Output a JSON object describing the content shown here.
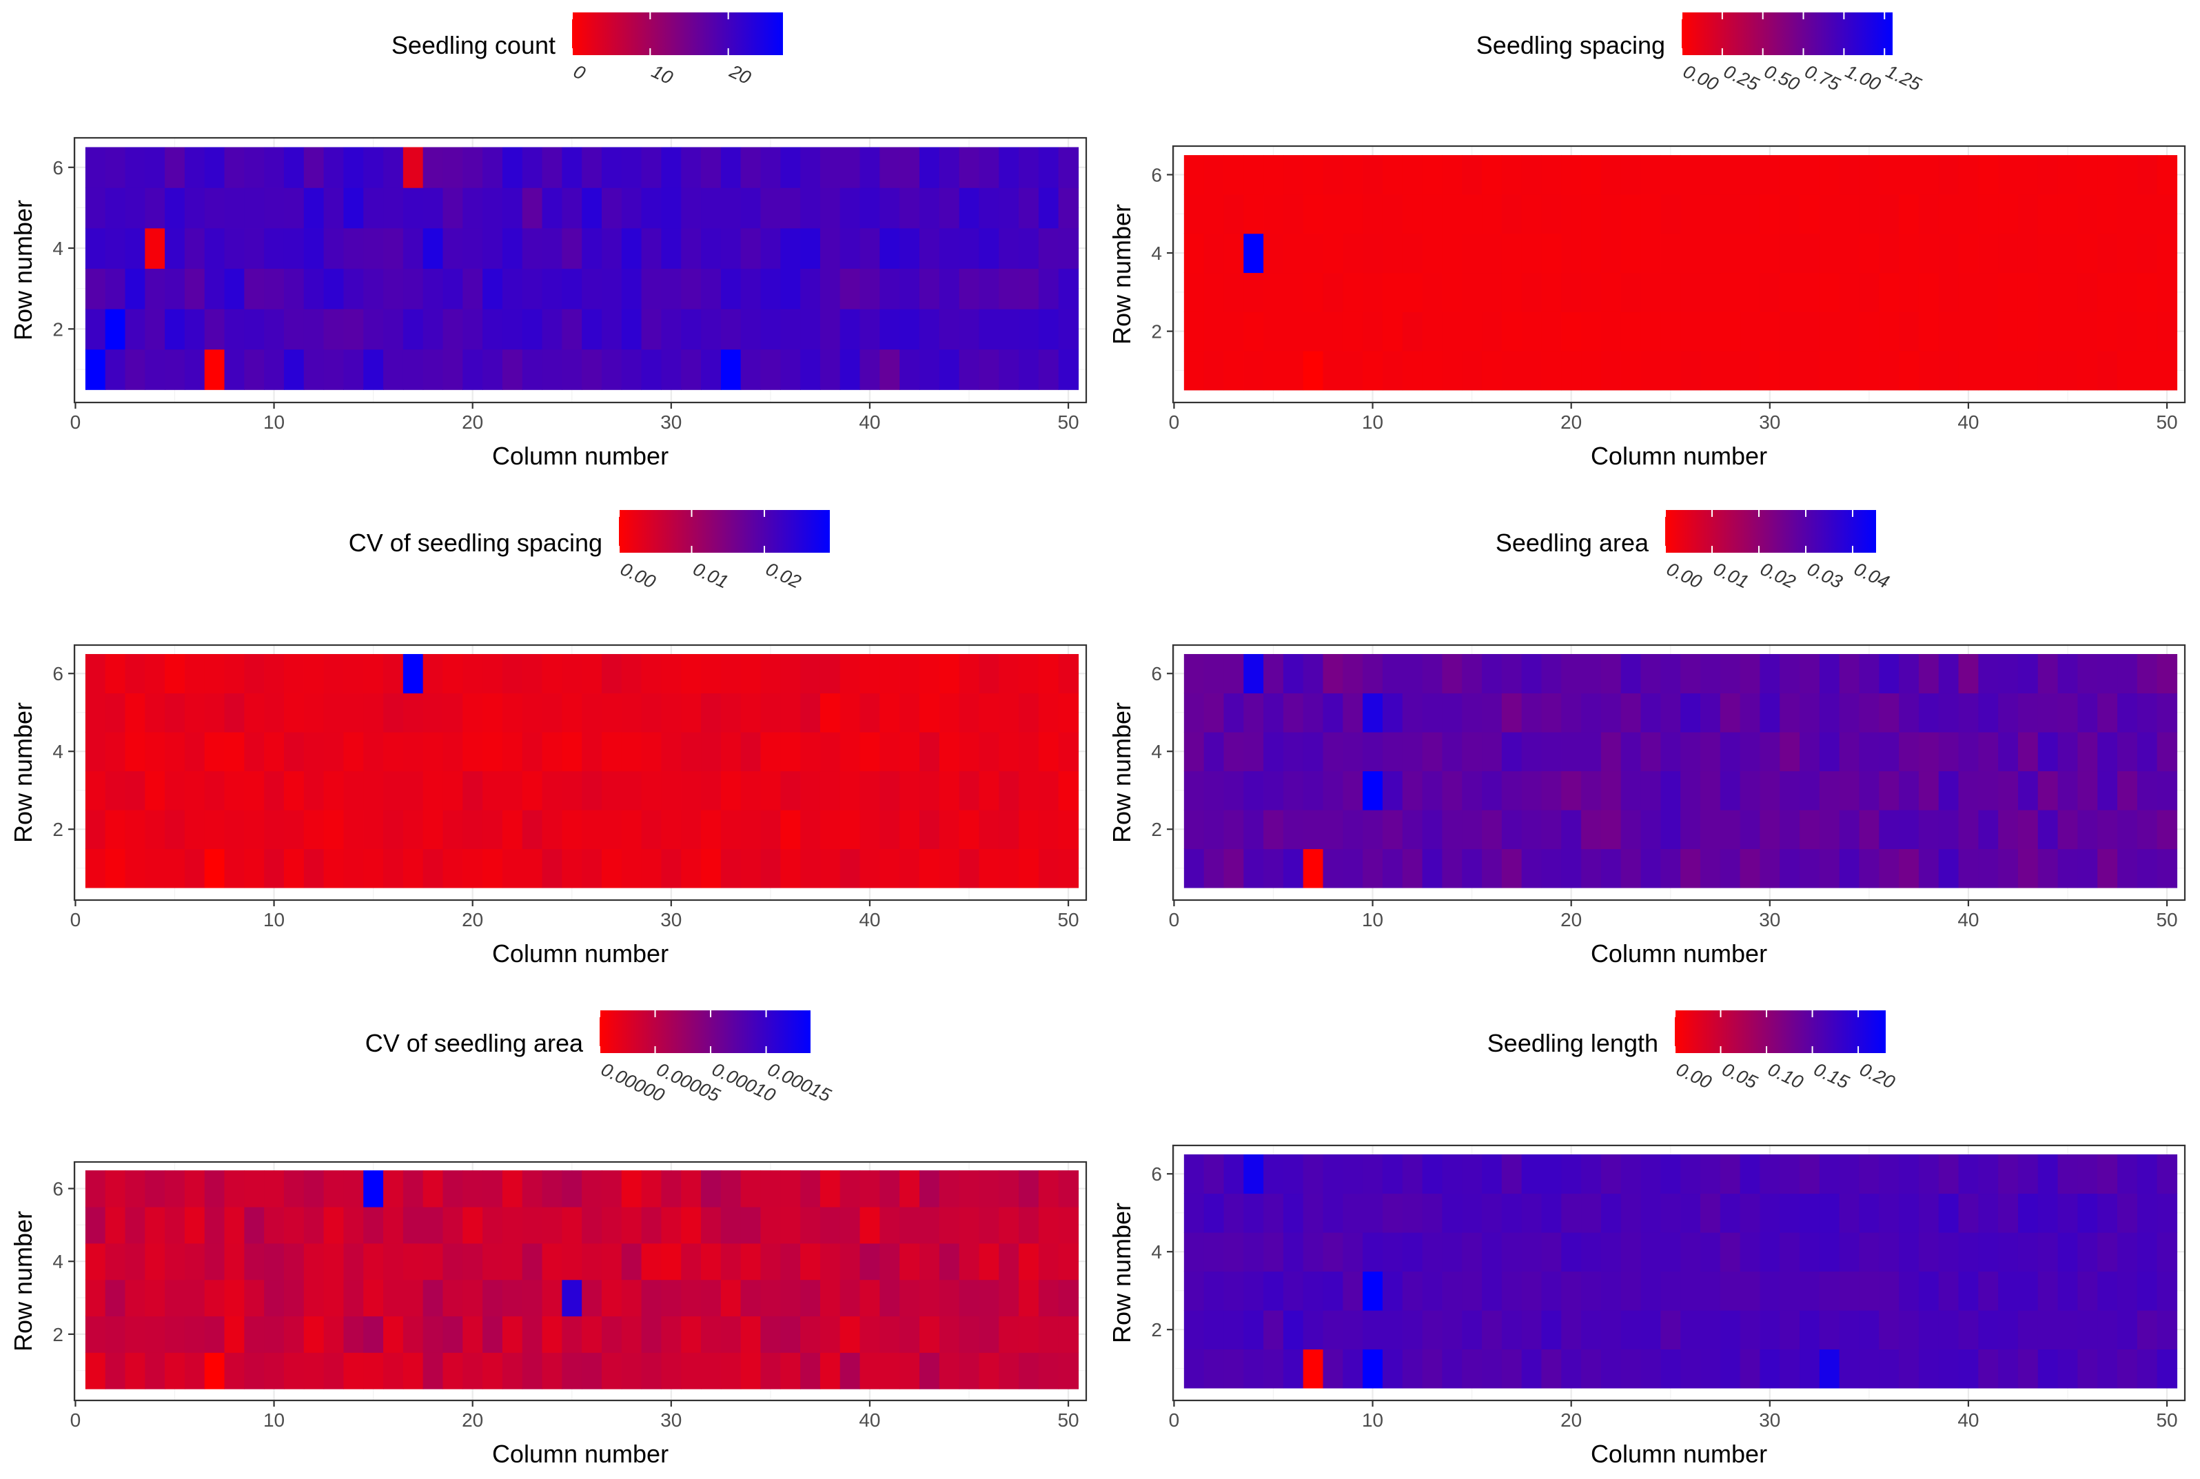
{
  "chart_data": [
    {
      "type": "heatmap",
      "title": "",
      "xlabel": "Column number",
      "ylabel": "Row number",
      "xlim": [
        0.5,
        50.5
      ],
      "ylim": [
        0.5,
        6.5
      ],
      "x_ticks": [
        0,
        10,
        20,
        30,
        40,
        50
      ],
      "y_ticks": [
        2,
        4,
        6
      ],
      "grid": true,
      "legend": {
        "title": "Seedling count",
        "position": "top",
        "low_color": "#ff0000",
        "high_color": "#0000ff",
        "range": [
          0,
          27
        ],
        "tick_labels": [
          "0",
          "10",
          "20"
        ],
        "tick_values": [
          0,
          10,
          20
        ]
      },
      "n_rows": 6,
      "n_cols": 50,
      "base_value": 20,
      "variation": 4,
      "seed": 11,
      "highlights": [
        {
          "row": 1,
          "col": 1,
          "value": 27
        },
        {
          "row": 1,
          "col": 7,
          "value": 0
        },
        {
          "row": 1,
          "col": 33,
          "value": 27
        },
        {
          "row": 2,
          "col": 2,
          "value": 27
        },
        {
          "row": 4,
          "col": 4,
          "value": 1
        },
        {
          "row": 6,
          "col": 17,
          "value": 3
        }
      ]
    },
    {
      "type": "heatmap",
      "title": "",
      "xlabel": "Column number",
      "ylabel": "Row number",
      "xlim": [
        0.5,
        50.5
      ],
      "ylim": [
        0.5,
        6.5
      ],
      "x_ticks": [
        0,
        10,
        20,
        30,
        40,
        50
      ],
      "y_ticks": [
        2,
        4,
        6
      ],
      "grid": true,
      "legend": {
        "title": "Seedling spacing",
        "position": "top",
        "low_color": "#ff0000",
        "high_color": "#0000ff",
        "range": [
          0,
          1.3
        ],
        "tick_labels": [
          "0.00",
          "0.25",
          "0.50",
          "0.75",
          "1.00",
          "1.25"
        ],
        "tick_values": [
          0,
          0.25,
          0.5,
          0.75,
          1.0,
          1.25
        ]
      },
      "n_rows": 6,
      "n_cols": 50,
      "base_value": 0.05,
      "variation": 0.015,
      "seed": 23,
      "highlights": [
        {
          "row": 4,
          "col": 4,
          "value": 1.3
        },
        {
          "row": 1,
          "col": 7,
          "value": 0.0
        }
      ]
    },
    {
      "type": "heatmap",
      "title": "",
      "xlabel": "Column number",
      "ylabel": "Row number",
      "xlim": [
        0.5,
        50.5
      ],
      "ylim": [
        0.5,
        6.5
      ],
      "x_ticks": [
        0,
        10,
        20,
        30,
        40,
        50
      ],
      "y_ticks": [
        2,
        4,
        6
      ],
      "grid": true,
      "legend": {
        "title": "CV of seedling spacing",
        "position": "top",
        "low_color": "#ff0000",
        "high_color": "#0000ff",
        "range": [
          0,
          0.029
        ],
        "tick_labels": [
          "0.00",
          "0.01",
          "0.02"
        ],
        "tick_values": [
          0,
          0.01,
          0.02
        ]
      },
      "n_rows": 6,
      "n_cols": 50,
      "base_value": 0.0025,
      "variation": 0.002,
      "seed": 37,
      "highlights": [
        {
          "row": 6,
          "col": 17,
          "value": 0.029
        },
        {
          "row": 1,
          "col": 7,
          "value": 0.0
        }
      ]
    },
    {
      "type": "heatmap",
      "title": "",
      "xlabel": "Column number",
      "ylabel": "Row number",
      "xlim": [
        0.5,
        50.5
      ],
      "ylim": [
        0.5,
        6.5
      ],
      "x_ticks": [
        0,
        10,
        20,
        30,
        40,
        50
      ],
      "y_ticks": [
        2,
        4,
        6
      ],
      "grid": true,
      "legend": {
        "title": "Seedling area",
        "position": "top",
        "low_color": "#ff0000",
        "high_color": "#0000ff",
        "range": [
          0,
          0.045
        ],
        "tick_labels": [
          "0.00",
          "0.01",
          "0.02",
          "0.03",
          "0.04"
        ],
        "tick_values": [
          0,
          0.01,
          0.02,
          0.03,
          0.04
        ]
      },
      "n_rows": 6,
      "n_cols": 50,
      "base_value": 0.029,
      "variation": 0.006,
      "seed": 41,
      "highlights": [
        {
          "row": 6,
          "col": 4,
          "value": 0.042
        },
        {
          "row": 3,
          "col": 10,
          "value": 0.045
        },
        {
          "row": 5,
          "col": 10,
          "value": 0.04
        },
        {
          "row": 1,
          "col": 7,
          "value": 0.0
        }
      ]
    },
    {
      "type": "heatmap",
      "title": "",
      "xlabel": "Column number",
      "ylabel": "Row number",
      "xlim": [
        0.5,
        50.5
      ],
      "ylim": [
        0.5,
        6.5
      ],
      "x_ticks": [
        0,
        10,
        20,
        30,
        40,
        50
      ],
      "y_ticks": [
        2,
        4,
        6
      ],
      "grid": true,
      "legend": {
        "title": "CV of seedling area",
        "position": "top",
        "low_color": "#ff0000",
        "high_color": "#0000ff",
        "range": [
          0,
          0.00019
        ],
        "tick_labels": [
          "0.00000",
          "0.00005",
          "0.00010",
          "0.00015"
        ],
        "tick_values": [
          0,
          5e-05,
          0.0001,
          0.00015
        ]
      },
      "n_rows": 6,
      "n_cols": 50,
      "base_value": 4e-05,
      "variation": 3e-05,
      "seed": 53,
      "highlights": [
        {
          "row": 6,
          "col": 15,
          "value": 0.00019
        },
        {
          "row": 3,
          "col": 25,
          "value": 0.00016
        },
        {
          "row": 1,
          "col": 7,
          "value": 0.0
        }
      ]
    },
    {
      "type": "heatmap",
      "title": "",
      "xlabel": "Column number",
      "ylabel": "Row number",
      "xlim": [
        0.5,
        50.5
      ],
      "ylim": [
        0.5,
        6.5
      ],
      "x_ticks": [
        0,
        10,
        20,
        30,
        40,
        50
      ],
      "y_ticks": [
        2,
        4,
        6
      ],
      "grid": true,
      "legend": {
        "title": "Seedling length",
        "position": "top",
        "low_color": "#ff0000",
        "high_color": "#0000ff",
        "range": [
          0,
          0.23
        ],
        "tick_labels": [
          "0.00",
          "0.05",
          "0.10",
          "0.15",
          "0.20"
        ],
        "tick_values": [
          0,
          0.05,
          0.1,
          0.15,
          0.2
        ]
      },
      "n_rows": 6,
      "n_cols": 50,
      "base_value": 0.165,
      "variation": 0.018,
      "seed": 67,
      "highlights": [
        {
          "row": 6,
          "col": 4,
          "value": 0.215
        },
        {
          "row": 3,
          "col": 10,
          "value": 0.23
        },
        {
          "row": 1,
          "col": 10,
          "value": 0.23
        },
        {
          "row": 1,
          "col": 33,
          "value": 0.21
        },
        {
          "row": 1,
          "col": 7,
          "value": 0.0
        }
      ]
    }
  ]
}
